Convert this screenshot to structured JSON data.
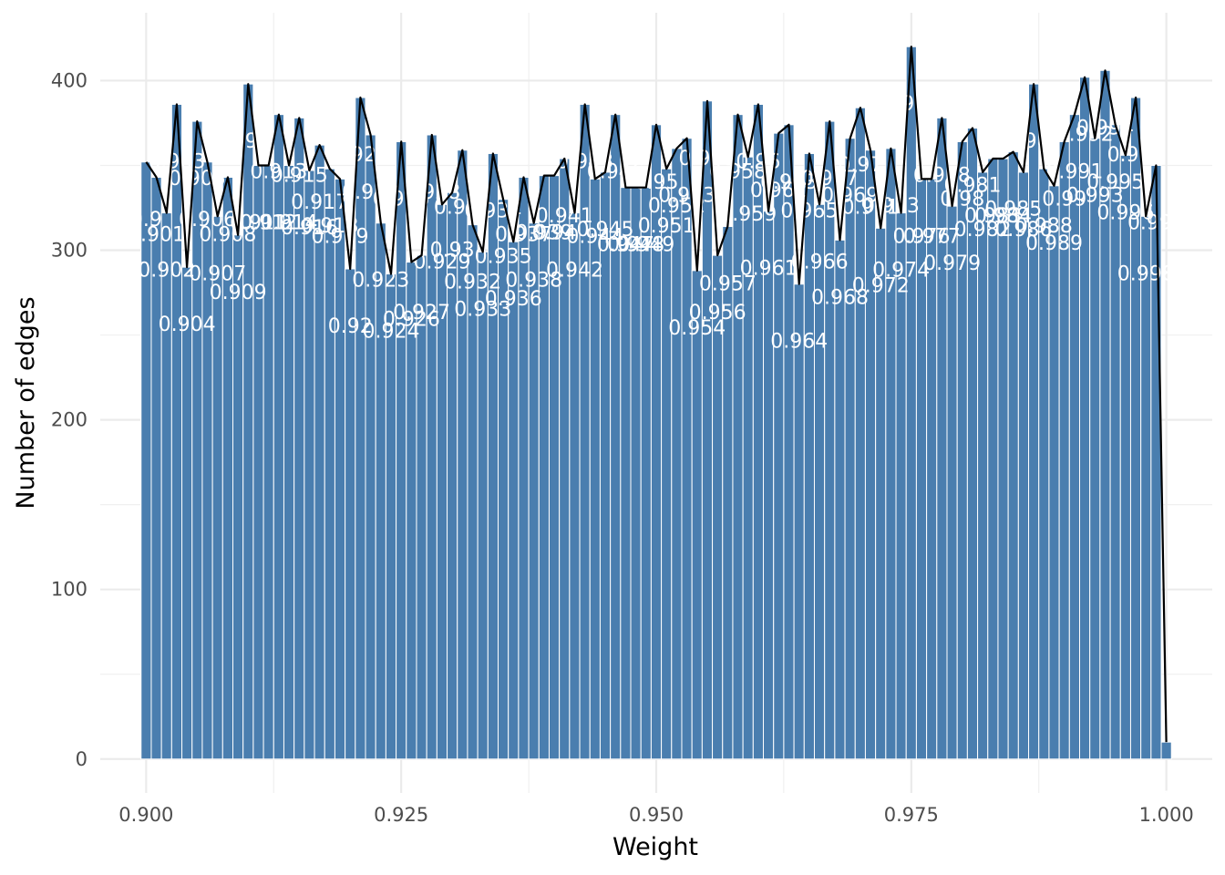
{
  "chart_data": {
    "type": "bar",
    "title": "",
    "xlabel": "Weight",
    "ylabel": "Number of edges",
    "xlim": [
      0.8955,
      1.0045
    ],
    "ylim": [
      -20,
      440
    ],
    "x_ticks": [
      "0.900",
      "0.925",
      "0.950",
      "0.975",
      "1.000"
    ],
    "y_ticks": [
      "0",
      "100",
      "200",
      "300",
      "400"
    ],
    "grid": true,
    "bar_color": "#4a7eaf",
    "line_color": "#000000",
    "series": [
      {
        "x": [
          0.9,
          0.901,
          0.902,
          0.903,
          0.904,
          0.905,
          0.906,
          0.907,
          0.908,
          0.909,
          0.91,
          0.911,
          0.912,
          0.913,
          0.914,
          0.915,
          0.916,
          0.917,
          0.918,
          0.919,
          0.92,
          0.921,
          0.922,
          0.923,
          0.924,
          0.925,
          0.926,
          0.927,
          0.928,
          0.929,
          0.93,
          0.931,
          0.932,
          0.933,
          0.934,
          0.935,
          0.936,
          0.937,
          0.938,
          0.939,
          0.94,
          0.941,
          0.942,
          0.943,
          0.944,
          0.945,
          0.946,
          0.947,
          0.948,
          0.949,
          0.95,
          0.951,
          0.952,
          0.953,
          0.954,
          0.955,
          0.956,
          0.957,
          0.958,
          0.959,
          0.96,
          0.961,
          0.962,
          0.963,
          0.964,
          0.965,
          0.966,
          0.967,
          0.968,
          0.969,
          0.97,
          0.971,
          0.972,
          0.973,
          0.974,
          0.975,
          0.976,
          0.977,
          0.978,
          0.979,
          0.98,
          0.981,
          0.982,
          0.983,
          0.984,
          0.985,
          0.986,
          0.987,
          0.988,
          0.989,
          0.99,
          0.991,
          0.992,
          0.993,
          0.994,
          0.995,
          0.996,
          0.997,
          0.998,
          0.999,
          1.0
        ],
        "values": [
          352,
          343,
          322,
          386,
          290,
          376,
          352,
          320,
          343,
          309,
          398,
          350,
          350,
          380,
          350,
          378,
          347,
          362,
          348,
          342,
          289,
          390,
          368,
          316,
          286,
          364,
          293,
          297,
          368,
          327,
          334,
          359,
          315,
          299,
          357,
          330,
          305,
          343,
          316,
          344,
          344,
          354,
          322,
          386,
          342,
          346,
          380,
          337,
          337,
          337,
          374,
          348,
          360,
          366,
          288,
          388,
          297,
          314,
          380,
          355,
          386,
          323,
          369,
          374,
          280,
          357,
          327,
          376,
          306,
          366,
          384,
          359,
          313,
          360,
          322,
          420,
          342,
          342,
          378,
          326,
          364,
          372,
          346,
          354,
          354,
          358,
          346,
          398,
          348,
          338,
          364,
          380,
          402,
          366,
          406,
          374,
          356,
          390,
          320,
          350,
          10
        ]
      }
    ],
    "data_labels": [
      "0.9",
      "0.901",
      "0.902",
      "0.903",
      "0.904",
      "0.905",
      "0.906",
      "0.907",
      "0.908",
      "0.909",
      "0.91",
      "0.911",
      "0.912",
      "0.913",
      "0.914",
      "0.915",
      "0.916",
      "0.917",
      "0.918",
      "0.919",
      "0.92",
      "0.921",
      "0.922",
      "0.923",
      "0.924",
      "0.925",
      "0.926",
      "0.927",
      "0.928",
      "0.929",
      "0.93",
      "0.931",
      "0.932",
      "0.933",
      "0.934",
      "0.935",
      "0.936",
      "0.937",
      "0.938",
      "0.939",
      "0.94",
      "0.941",
      "0.942",
      "0.943",
      "0.944",
      "0.945",
      "0.946",
      "0.947",
      "0.948",
      "0.949",
      "0.95",
      "0.951",
      "0.952",
      "0.953",
      "0.954",
      "0.955",
      "0.956",
      "0.957",
      "0.958",
      "0.959",
      "0.96",
      "0.961",
      "0.962",
      "0.963",
      "0.964",
      "0.965",
      "0.966",
      "0.967",
      "0.968",
      "0.969",
      "0.97",
      "0.971",
      "0.972",
      "0.973",
      "0.974",
      "0.975",
      "0.976",
      "0.977",
      "0.978",
      "0.979",
      "0.98",
      "0.981",
      "0.982",
      "0.983",
      "0.984",
      "0.985",
      "0.986",
      "0.987",
      "0.988",
      "0.989",
      "0.99",
      "0.991",
      "0.992",
      "0.993",
      "0.994",
      "0.995",
      "0.996",
      "0.997",
      "0.998",
      "0.999",
      "1"
    ]
  }
}
